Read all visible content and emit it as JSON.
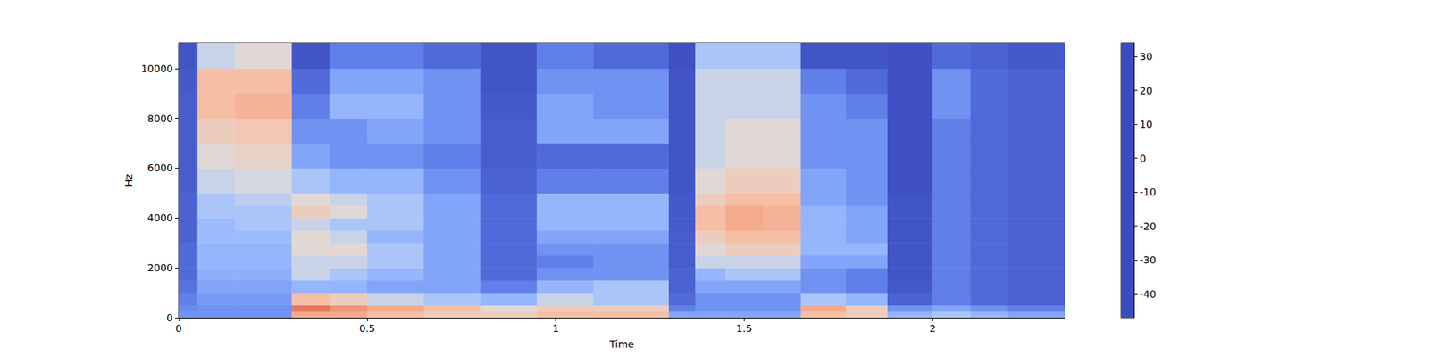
{
  "chart_data": {
    "type": "heatmap",
    "x_label": "Time",
    "y_label": "Hz",
    "xlim": [
      0,
      2.35
    ],
    "xticks": [
      0,
      0.5,
      1,
      1.5,
      2
    ],
    "ylim": [
      0,
      11025
    ],
    "yticks": [
      0,
      2000,
      4000,
      6000,
      8000,
      10000
    ],
    "time_edges": [
      0,
      0.05,
      0.15,
      0.3,
      0.4,
      0.5,
      0.65,
      0.8,
      0.95,
      1.1,
      1.3,
      1.37,
      1.45,
      1.55,
      1.65,
      1.77,
      1.88,
      2.0,
      2.1,
      2.2,
      2.35
    ],
    "frequency_edges": [
      0,
      250,
      500,
      1000,
      1500,
      2000,
      2500,
      3000,
      3500,
      4000,
      4500,
      5000,
      6000,
      7000,
      8000,
      9000,
      10000,
      11025
    ],
    "cells": [
      [
        -30,
        -32,
        -35,
        -38,
        -40,
        -40,
        -40,
        -42,
        -42,
        -42,
        -42,
        -43,
        -43,
        -43,
        -43,
        -44,
        -45
      ],
      [
        -30,
        -30,
        -28,
        -25,
        -22,
        -20,
        -20,
        -18,
        -18,
        -15,
        -15,
        -10,
        -5,
        0,
        5,
        5,
        -10
      ],
      [
        -30,
        -30,
        -28,
        -25,
        -22,
        -20,
        -20,
        -18,
        -15,
        -15,
        -12,
        -8,
        -2,
        2,
        8,
        5,
        -5
      ],
      [
        10,
        20,
        5,
        -20,
        -10,
        -10,
        -5,
        -5,
        -10,
        0,
        -5,
        -15,
        -25,
        -30,
        -35,
        -40,
        -45
      ],
      [
        10,
        15,
        0,
        -20,
        -15,
        -10,
        -5,
        -10,
        -15,
        -5,
        -10,
        -20,
        -30,
        -30,
        -20,
        -25,
        -35
      ],
      [
        5,
        10,
        -10,
        -25,
        -20,
        -15,
        -15,
        -20,
        -15,
        -15,
        -15,
        -20,
        -30,
        -25,
        -20,
        -25,
        -35
      ],
      [
        0,
        5,
        -15,
        -25,
        -25,
        -25,
        -25,
        -25,
        -25,
        -25,
        -25,
        -30,
        -35,
        -30,
        -30,
        -30,
        -40
      ],
      [
        0,
        -5,
        -20,
        -35,
        -40,
        -40,
        -40,
        -40,
        -40,
        -40,
        -40,
        -42,
        -43,
        -43,
        -44,
        -45,
        -45
      ],
      [
        5,
        0,
        -10,
        -20,
        -30,
        -35,
        -30,
        -25,
        -20,
        -20,
        -20,
        -35,
        -40,
        -25,
        -25,
        -30,
        -35
      ],
      [
        5,
        0,
        -15,
        -15,
        -30,
        -30,
        -30,
        -25,
        -20,
        -20,
        -20,
        -35,
        -40,
        -25,
        -30,
        -30,
        -40
      ],
      [
        -25,
        -35,
        -40,
        -42,
        -42,
        -43,
        -43,
        -43,
        -44,
        -44,
        -44,
        -45,
        -45,
        -45,
        -45,
        -45,
        -46
      ],
      [
        -25,
        -30,
        -30,
        -25,
        -20,
        -10,
        -5,
        0,
        5,
        5,
        0,
        -5,
        -10,
        -10,
        -10,
        -10,
        -15
      ],
      [
        -25,
        -30,
        -30,
        -25,
        -15,
        -10,
        0,
        5,
        10,
        10,
        5,
        0,
        -5,
        -5,
        -10,
        -10,
        -15
      ],
      [
        -25,
        -30,
        -30,
        -25,
        -15,
        -10,
        0,
        5,
        8,
        8,
        5,
        0,
        -5,
        -5,
        -10,
        -10,
        -15
      ],
      [
        5,
        10,
        -15,
        -30,
        -30,
        -25,
        -20,
        -20,
        -20,
        -20,
        -25,
        -25,
        -30,
        -30,
        -30,
        -35,
        -45
      ],
      [
        0,
        0,
        -20,
        -35,
        -35,
        -25,
        -20,
        -25,
        -25,
        -25,
        -30,
        -30,
        -30,
        -30,
        -35,
        -40,
        -45
      ],
      [
        -20,
        -30,
        -42,
        -44,
        -45,
        -45,
        -45,
        -45,
        -45,
        -45,
        -45,
        -46,
        -46,
        -46,
        -46,
        -46,
        -46
      ],
      [
        -15,
        -25,
        -35,
        -35,
        -35,
        -35,
        -35,
        -35,
        -35,
        -35,
        -35,
        -35,
        -35,
        -35,
        -30,
        -30,
        -40
      ],
      [
        -20,
        -30,
        -40,
        -40,
        -40,
        -40,
        -40,
        -40,
        -40,
        -40,
        -40,
        -40,
        -40,
        -40,
        -40,
        -40,
        -42
      ],
      [
        -25,
        -35,
        -42,
        -42,
        -42,
        -42,
        -42,
        -42,
        -42,
        -42,
        -42,
        -42,
        -42,
        -42,
        -42,
        -42,
        -44
      ]
    ],
    "colorbar": {
      "range": [
        -47,
        34
      ],
      "ticks": [
        -40,
        -30,
        -20,
        -10,
        0,
        10,
        20,
        30
      ]
    }
  }
}
